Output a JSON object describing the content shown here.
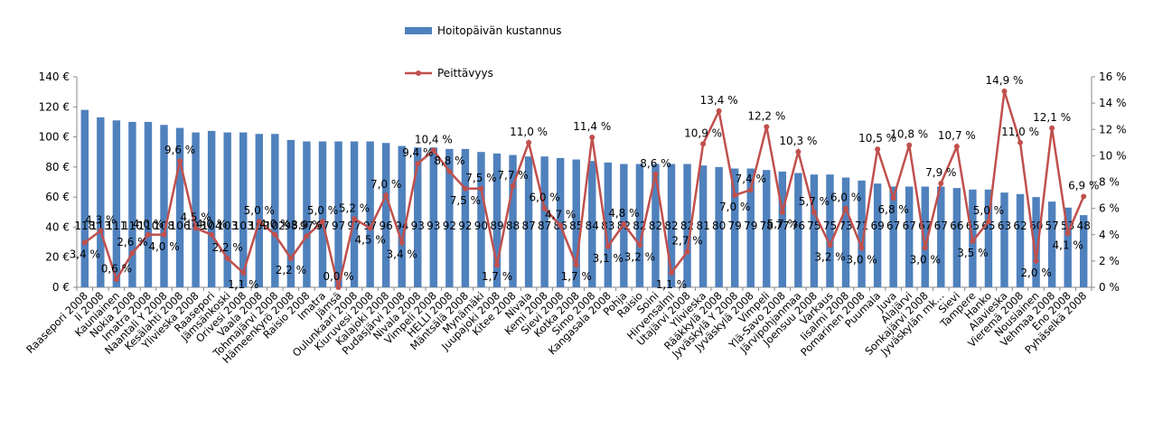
{
  "chart_data": {
    "type": "bar+line",
    "title": "",
    "legend": [
      {
        "name": "Hoitopäivän kustannus",
        "type": "bar",
        "color": "#4f81bd"
      },
      {
        "name": "Peittävyys",
        "type": "line",
        "color": "#c0504d"
      }
    ],
    "y_left": {
      "min": 0,
      "max": 140,
      "step": 20,
      "unit": "€",
      "ticks": [
        "0 €",
        "20 €",
        "40 €",
        "60 €",
        "80 €",
        "100 €",
        "120 €",
        "140 €"
      ]
    },
    "y_right": {
      "min": 0,
      "max": 16,
      "step": 2,
      "unit": "%",
      "ticks": [
        "0 %",
        "2 %",
        "4 %",
        "6 %",
        "8 %",
        "10 %",
        "12 %",
        "14 %",
        "16 %"
      ]
    },
    "categories": [
      "Raasepori 2008",
      "Ii 2008",
      "Kauniainen",
      "Nokia 2008",
      "Imatra 2008",
      "Naantali Y 2008",
      "Kesälahti 2008",
      "Ylivieska 2008",
      "Raasepori",
      "Jämsänkoski",
      "Orivesi 2008",
      "Vaala 2008",
      "Tohmajärvi 2008",
      "Hämeenkyrö 2008",
      "Raisio 2008",
      "Imatra",
      "Jämsä",
      "Oulunkaari 2008",
      "Kiuruvesi 2008",
      "Kalajoki 2008",
      "Pudasjärvi 2008",
      "Nivala 2008",
      "Vimpeli 2008",
      "HELLI 2008",
      "Mäntsälä 2008",
      "Mynämäki",
      "Juupajoki 2008",
      "Kitee 2008",
      "Nivala",
      "Kemi 2008",
      "Sievi 2008",
      "Kotka 2008",
      "Simo 2008",
      "Kangasala 2008",
      "Pohja",
      "Raisio",
      "Soini",
      "Hirvensalmi",
      "Utajärvi 2008",
      "Ylivieska",
      "Rääkkylä 2008",
      "Jyväskylä Y 2008",
      "Jyväskylä 2008",
      "Vimpeli",
      "Ylä-Savo 2008",
      "Järvipohjanmaa",
      "Joensuu 2008",
      "Varkaus",
      "Iisalmi 2008",
      "Pomarinen 2008",
      "Puumala",
      "Juva",
      "Alajärvi",
      "Sonkajärvi 2008",
      "Jyväskylän mk...",
      "Sievi",
      "Tampere",
      "Hanko",
      "Alavieska",
      "Vieremä 2008",
      "Nousiainen",
      "Vehmaa 2008",
      "Eno 2008",
      "Pyhäselkä 2008"
    ],
    "series": [
      {
        "name": "Hoitopäivän kustannus",
        "values": [
          118,
          113,
          111,
          110,
          110,
          108,
          106,
          103,
          104,
          103,
          103,
          102,
          102,
          98,
          97,
          97,
          97,
          97,
          97,
          96,
          94,
          93,
          93,
          92,
          92,
          90,
          89,
          88,
          87,
          87,
          86,
          85,
          84,
          83,
          82,
          82,
          82,
          82,
          82,
          81,
          80,
          79,
          79,
          78,
          77,
          76,
          75,
          75,
          73,
          71,
          69,
          67,
          67,
          67,
          67,
          66,
          65,
          65,
          63,
          62,
          60,
          57,
          53,
          48
        ],
        "data_labels": [
          "118",
          "113",
          "111",
          "110",
          "110",
          "108",
          "106",
          "103",
          "104",
          "103",
          "103",
          "102",
          "102",
          "98",
          "97",
          "97",
          "97",
          "97",
          "97",
          "96",
          "94",
          "93",
          "93",
          "92",
          "92",
          "90",
          "89",
          "88",
          "87",
          "87",
          "86",
          "85",
          "84",
          "83",
          "82",
          "82",
          "82",
          "82",
          "82",
          "81",
          "80",
          "79",
          "79",
          "78",
          "77",
          "76",
          "75",
          "75",
          "73",
          "71",
          "69",
          "67",
          "67",
          "67",
          "67",
          "66",
          "65",
          "65",
          "63",
          "62",
          "60",
          "57",
          "53",
          "48"
        ]
      },
      {
        "name": "Peittävyys",
        "values": [
          3.4,
          4.3,
          0.6,
          2.6,
          4.0,
          4.0,
          9.6,
          4.5,
          4.0,
          2.2,
          1.1,
          5.0,
          4.0,
          2.2,
          3.9,
          5.0,
          0.0,
          5.2,
          4.5,
          7.0,
          3.4,
          9.4,
          10.4,
          8.8,
          7.5,
          7.5,
          1.7,
          7.7,
          11.0,
          6.0,
          4.7,
          1.7,
          11.4,
          3.1,
          4.8,
          3.2,
          8.6,
          1.1,
          2.7,
          10.9,
          13.4,
          7.0,
          7.4,
          12.2,
          5.7,
          10.3,
          5.7,
          3.2,
          6.0,
          3.0,
          10.5,
          6.8,
          10.8,
          3.0,
          7.9,
          10.7,
          3.5,
          5.0,
          14.9,
          11.0,
          2.0,
          12.1,
          4.1,
          6.9
        ],
        "data_labels": [
          "3,4 %",
          "4,3 %",
          "0,6 %",
          "2,6 %",
          "4,0 %",
          "4,0 %",
          "9,6 %",
          "4,5 %",
          "4,0 %",
          "2,2 %",
          "1,1 %",
          "5,0 %",
          "4,0 %",
          "2,2 %",
          "3,9 %",
          "5,0 %",
          "0,0 %",
          "5,2 %",
          "4,5 %",
          "7,0 %",
          "3,4 %",
          "9,4 %",
          "10,4 %",
          "8,8 %",
          "7,5 %",
          "7,5 %",
          "1,7 %",
          "7,7 %",
          "11,0 %",
          "6,0 %",
          "4,7 %",
          "1,7 %",
          "11,4 %",
          "3,1 %",
          "4,8 %",
          "3,2 %",
          "8,6 %",
          "1,1 %",
          "2,7 %",
          "10,9 %",
          "13,4 %",
          "7,0 %",
          "7,4 %",
          "12,2 %",
          "5,7 %",
          "10,3 %",
          "5,7 %",
          "3,2 %",
          "6,0 %",
          "3,0 %",
          "10,5 %",
          "6,8 %",
          "10,8 %",
          "3,0 %",
          "7,9 %",
          "10,7 %",
          "3,5 %",
          "5,0 %",
          "14,9 %",
          "11,0 %",
          "2,0 %",
          "12,1 %",
          "4,1 %",
          "6,9 %"
        ]
      }
    ]
  }
}
